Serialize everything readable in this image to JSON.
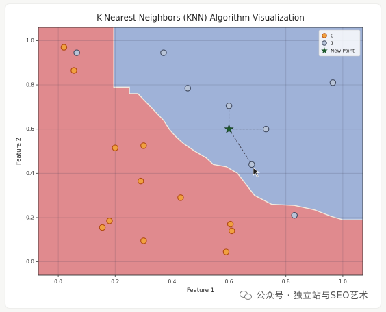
{
  "chart_data": {
    "type": "scatter",
    "title": "K-Nearest Neighbors (KNN) Algorithm Visualization",
    "xlabel": "Feature 1",
    "ylabel": "Feature 2",
    "xlim": [
      -0.07,
      1.07
    ],
    "ylim": [
      -0.06,
      1.06
    ],
    "x_ticks": [
      0.0,
      0.2,
      0.4,
      0.6,
      0.8,
      1.0
    ],
    "y_ticks": [
      0.0,
      0.2,
      0.4,
      0.6,
      0.8,
      1.0
    ],
    "x_tick_labels": [
      "0.0",
      "0.2",
      "0.4",
      "0.6",
      "0.8",
      "1.0"
    ],
    "y_tick_labels": [
      "0.0",
      "0.2",
      "0.4",
      "0.6",
      "0.8",
      "1.0"
    ],
    "grid": true,
    "legend_position": "top-right",
    "series": [
      {
        "name": "0",
        "color": "#f0a040",
        "points": [
          [
            0.02,
            0.97
          ],
          [
            0.055,
            0.865
          ],
          [
            0.2,
            0.515
          ],
          [
            0.3,
            0.525
          ],
          [
            0.29,
            0.365
          ],
          [
            0.43,
            0.29
          ],
          [
            0.18,
            0.185
          ],
          [
            0.155,
            0.155
          ],
          [
            0.3,
            0.095
          ],
          [
            0.605,
            0.17
          ],
          [
            0.61,
            0.14
          ],
          [
            0.59,
            0.045
          ]
        ]
      },
      {
        "name": "1",
        "color": "#b8c4d8",
        "points": [
          [
            0.065,
            0.945
          ],
          [
            0.37,
            0.945
          ],
          [
            0.455,
            0.785
          ],
          [
            0.6,
            0.705
          ],
          [
            0.73,
            0.6
          ],
          [
            0.68,
            0.44
          ],
          [
            0.83,
            0.21
          ],
          [
            0.965,
            0.81
          ]
        ]
      }
    ],
    "new_point": {
      "name": "New Point",
      "x": 0.6,
      "y": 0.6,
      "color": "#1e5a2e"
    },
    "neighbors": [
      [
        0.73,
        0.6
      ],
      [
        0.6,
        0.705
      ],
      [
        0.68,
        0.44
      ]
    ],
    "regions": {
      "class_0_color": "#e08a8e",
      "class_1_color": "#9fb2d8",
      "boundary": [
        [
          0.195,
          1.06
        ],
        [
          0.195,
          0.79
        ],
        [
          0.25,
          0.79
        ],
        [
          0.25,
          0.76
        ],
        [
          0.28,
          0.76
        ],
        [
          0.31,
          0.72
        ],
        [
          0.34,
          0.68
        ],
        [
          0.37,
          0.64
        ],
        [
          0.39,
          0.6
        ],
        [
          0.41,
          0.57
        ],
        [
          0.44,
          0.535
        ],
        [
          0.48,
          0.5
        ],
        [
          0.52,
          0.47
        ],
        [
          0.545,
          0.44
        ],
        [
          0.59,
          0.43
        ],
        [
          0.63,
          0.4
        ],
        [
          0.66,
          0.35
        ],
        [
          0.69,
          0.3
        ],
        [
          0.75,
          0.26
        ],
        [
          0.83,
          0.255
        ],
        [
          0.9,
          0.235
        ],
        [
          0.96,
          0.205
        ],
        [
          1.0,
          0.19
        ],
        [
          1.07,
          0.19
        ]
      ]
    }
  },
  "watermark": {
    "text": "公众号 · 独立站与SEO艺术"
  }
}
